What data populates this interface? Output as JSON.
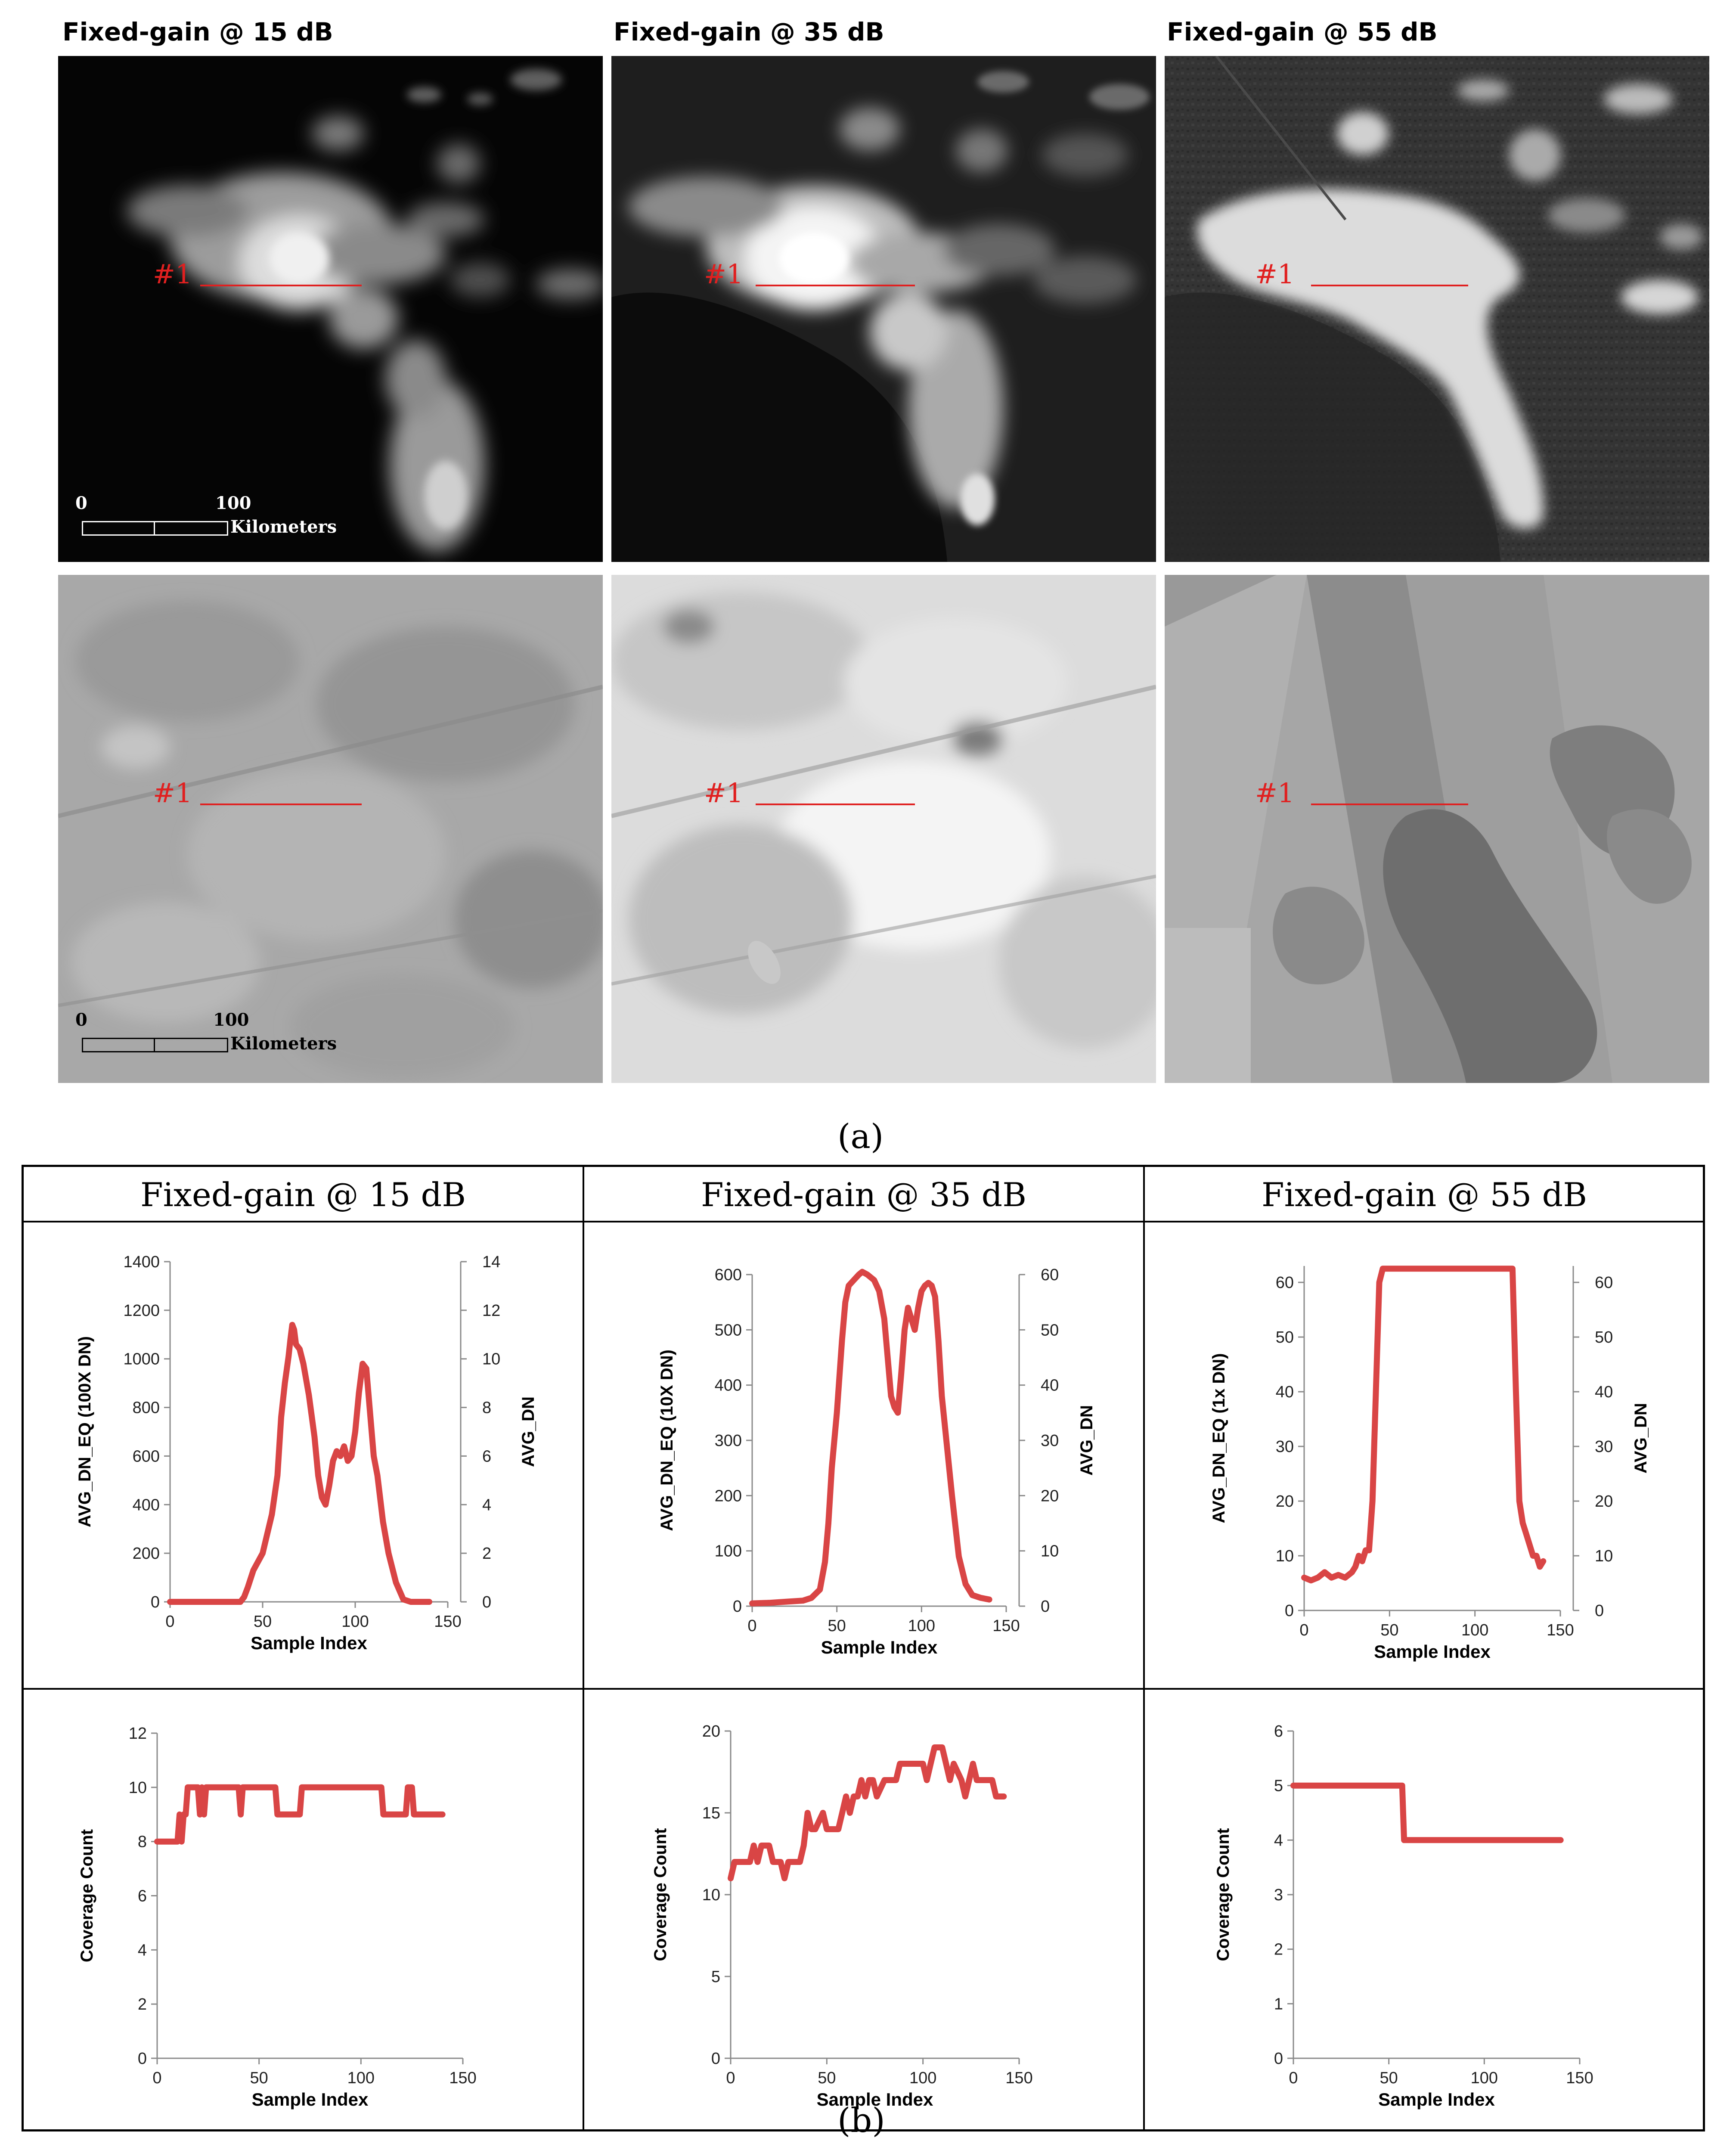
{
  "images": {
    "headers": [
      "Fixed-gain @ 15 dB",
      "Fixed-gain @ 35 dB",
      "Fixed-gain @ 55 dB"
    ],
    "profile_tag": "#1",
    "scalebar": {
      "start": "0",
      "end": "100",
      "unit": "Kilometers"
    },
    "caption_a": "(a)"
  },
  "table": {
    "col_titles": [
      "Fixed-gain @ 15 dB",
      "Fixed-gain @ 35 dB",
      "Fixed-gain @ 55 dB"
    ],
    "caption_b": "(b)"
  },
  "colors": {
    "series": "#d94545",
    "profile": "#e02020"
  },
  "chart_data": [
    {
      "type": "line",
      "xlabel": "Sample Index",
      "ylabel": "AVG_DN_EQ (100X DN)",
      "y2label": "AVG_DN",
      "xlim": [
        0,
        150
      ],
      "ylim": [
        0,
        1400
      ],
      "y2lim": [
        0,
        14
      ],
      "xticks": [
        0,
        50,
        100,
        150
      ],
      "yticks": [
        0,
        200,
        400,
        600,
        800,
        1000,
        1200,
        1400
      ],
      "y2ticks": [
        0,
        2,
        4,
        6,
        8,
        10,
        12,
        14
      ],
      "x": [
        0,
        10,
        20,
        30,
        38,
        40,
        42,
        45,
        50,
        55,
        58,
        60,
        62,
        64,
        65,
        66,
        67,
        68,
        70,
        72,
        75,
        78,
        80,
        82,
        84,
        86,
        88,
        90,
        92,
        94,
        96,
        98,
        100,
        102,
        104,
        106,
        108,
        110,
        112,
        115,
        118,
        122,
        126,
        130,
        135,
        140
      ],
      "values": [
        0,
        0,
        0,
        0,
        0,
        20,
        60,
        130,
        200,
        360,
        520,
        760,
        900,
        1010,
        1080,
        1140,
        1120,
        1060,
        1040,
        980,
        850,
        680,
        520,
        430,
        400,
        480,
        580,
        620,
        600,
        640,
        580,
        600,
        700,
        860,
        980,
        960,
        780,
        600,
        520,
        330,
        200,
        80,
        10,
        0,
        0,
        0
      ],
      "grid": false,
      "legend": "none"
    },
    {
      "type": "line",
      "xlabel": "Sample Index",
      "ylabel": "AVG_DN_EQ (10X DN)",
      "y2label": "AVG_DN",
      "xlim": [
        0,
        150
      ],
      "ylim": [
        0,
        600
      ],
      "y2lim": [
        0,
        60
      ],
      "xticks": [
        0,
        50,
        100,
        150
      ],
      "yticks": [
        0,
        100,
        200,
        300,
        400,
        500,
        600
      ],
      "y2ticks": [
        0,
        10,
        20,
        30,
        40,
        50,
        60
      ],
      "x": [
        0,
        10,
        20,
        30,
        35,
        40,
        43,
        45,
        47,
        50,
        53,
        55,
        57,
        60,
        63,
        65,
        68,
        70,
        72,
        75,
        78,
        80,
        82,
        84,
        86,
        88,
        90,
        92,
        94,
        96,
        98,
        100,
        102,
        104,
        106,
        108,
        110,
        112,
        115,
        118,
        122,
        126,
        130,
        135,
        140
      ],
      "values": [
        5,
        6,
        8,
        10,
        15,
        30,
        80,
        150,
        250,
        350,
        480,
        550,
        580,
        590,
        600,
        605,
        600,
        595,
        590,
        570,
        520,
        450,
        380,
        360,
        350,
        420,
        500,
        540,
        520,
        500,
        540,
        570,
        580,
        585,
        580,
        560,
        480,
        380,
        290,
        200,
        90,
        40,
        20,
        15,
        12
      ],
      "grid": false,
      "legend": "none"
    },
    {
      "type": "line",
      "xlabel": "Sample Index",
      "ylabel": "AVG_DN_EQ (1x DN)",
      "y2label": "AVG_DN",
      "xlim": [
        0,
        150
      ],
      "ylim": [
        0,
        63
      ],
      "y2lim": [
        0,
        63
      ],
      "xticks": [
        0,
        50,
        100,
        150
      ],
      "yticks": [
        0,
        10,
        20,
        30,
        40,
        50,
        60
      ],
      "y2ticks": [
        0,
        10,
        20,
        30,
        40,
        50,
        60
      ],
      "x": [
        0,
        4,
        8,
        12,
        16,
        20,
        24,
        28,
        30,
        32,
        34,
        36,
        38,
        40,
        42,
        44,
        46,
        48,
        120,
        122,
        124,
        126,
        128,
        130,
        132,
        134,
        136,
        138,
        140
      ],
      "values": [
        6,
        5.5,
        6,
        7,
        6,
        6.5,
        6,
        7,
        8,
        10,
        9,
        11,
        11,
        20,
        40,
        60,
        62.5,
        62.5,
        62.5,
        62.5,
        40,
        20,
        16,
        14,
        12,
        10,
        10,
        8,
        9
      ],
      "grid": false,
      "legend": "none"
    },
    {
      "type": "line",
      "xlabel": "Sample Index",
      "ylabel": "Coverage Count",
      "xlim": [
        0,
        150
      ],
      "ylim": [
        0,
        12
      ],
      "xticks": [
        0,
        50,
        100,
        150
      ],
      "yticks": [
        0,
        2,
        4,
        6,
        8,
        10,
        12
      ],
      "x": [
        0,
        10,
        11,
        12,
        13,
        14,
        15,
        20,
        21,
        22,
        23,
        24,
        40,
        41,
        42,
        58,
        59,
        70,
        71,
        110,
        111,
        122,
        123,
        125,
        126,
        140
      ],
      "values": [
        8,
        8,
        9,
        8,
        9,
        9,
        10,
        10,
        9,
        10,
        9,
        10,
        10,
        9,
        10,
        10,
        9,
        9,
        10,
        10,
        9,
        9,
        10,
        10,
        9,
        9
      ],
      "grid": false,
      "legend": "none"
    },
    {
      "type": "line",
      "xlabel": "Sample Index",
      "ylabel": "Coverage Count",
      "xlim": [
        0,
        150
      ],
      "ylim": [
        0,
        20
      ],
      "xticks": [
        0,
        50,
        100,
        150
      ],
      "yticks": [
        0,
        5,
        10,
        15,
        20
      ],
      "x": [
        0,
        2,
        4,
        10,
        12,
        14,
        16,
        20,
        22,
        26,
        28,
        30,
        32,
        36,
        38,
        40,
        42,
        44,
        48,
        50,
        56,
        58,
        60,
        62,
        64,
        66,
        68,
        70,
        72,
        74,
        76,
        80,
        86,
        88,
        96,
        100,
        102,
        104,
        106,
        110,
        112,
        114,
        116,
        120,
        122,
        124,
        126,
        128,
        130,
        136,
        138,
        142
      ],
      "values": [
        11,
        12,
        12,
        12,
        13,
        12,
        13,
        13,
        12,
        12,
        11,
        12,
        12,
        12,
        13,
        15,
        14,
        14,
        15,
        14,
        14,
        15,
        16,
        15,
        16,
        16,
        17,
        16,
        17,
        17,
        16,
        17,
        17,
        18,
        18,
        18,
        17,
        18,
        19,
        19,
        18,
        17,
        18,
        17,
        16,
        17,
        18,
        17,
        17,
        17,
        16,
        16
      ],
      "grid": false,
      "legend": "none"
    },
    {
      "type": "line",
      "xlabel": "Sample Index",
      "ylabel": "Coverage Count",
      "xlim": [
        0,
        150
      ],
      "ylim": [
        0,
        6
      ],
      "xticks": [
        0,
        50,
        100,
        150
      ],
      "yticks": [
        0,
        1,
        2,
        3,
        4,
        5,
        6
      ],
      "x": [
        0,
        57,
        58,
        60,
        140
      ],
      "values": [
        5,
        5,
        4,
        4,
        4
      ],
      "grid": false,
      "legend": "none"
    }
  ]
}
